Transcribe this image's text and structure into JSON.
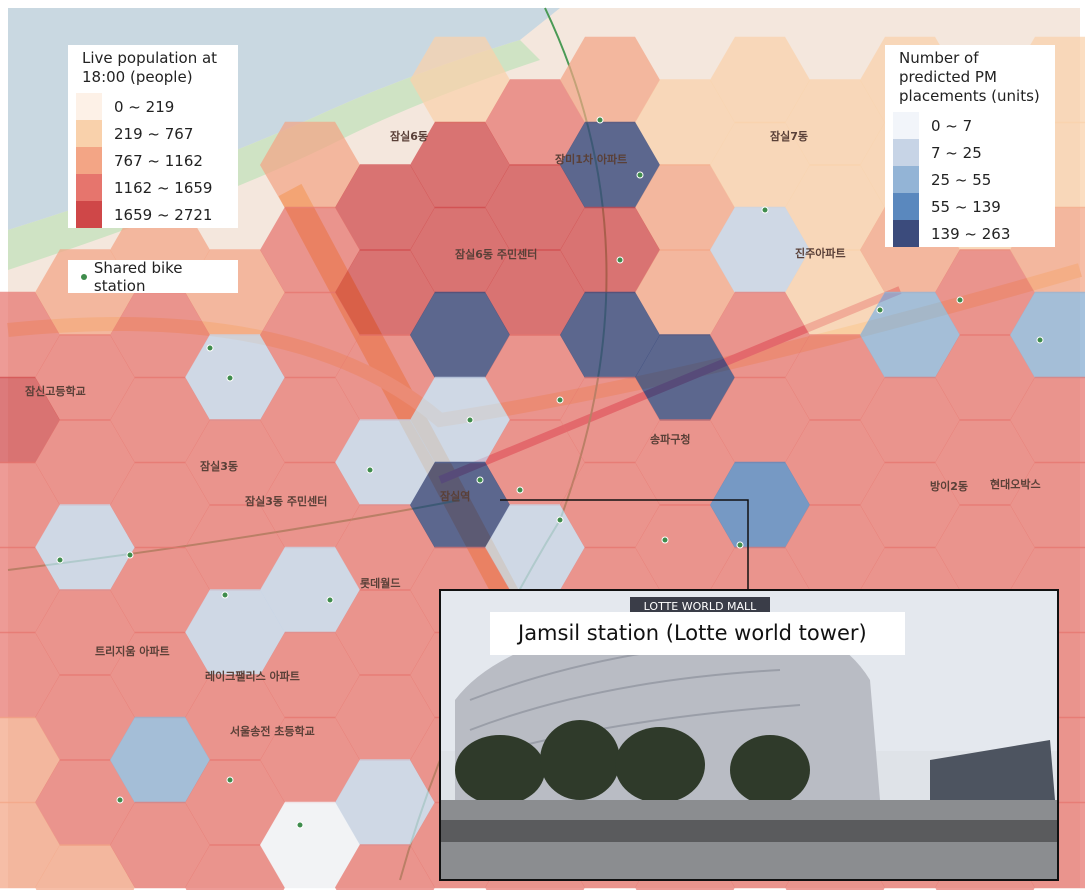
{
  "map": {
    "population_legend": {
      "title": "Live population at 18:00 (people)",
      "items": [
        {
          "label": "0 ~ 219",
          "color": "#fdf1e7"
        },
        {
          "label": "219 ~ 767",
          "color": "#f9d1ab"
        },
        {
          "label": "767 ~ 1162",
          "color": "#f3a585"
        },
        {
          "label": "1162 ~ 1659",
          "color": "#e6756d"
        },
        {
          "label": "1659 ~ 2721",
          "color": "#cf4748"
        }
      ]
    },
    "pm_legend": {
      "title": "Number of predicted PM placements (units)",
      "items": [
        {
          "label": "0 ~ 7",
          "color": "#f2f5fa"
        },
        {
          "label": "7 ~ 25",
          "color": "#c7d4e6"
        },
        {
          "label": "25 ~ 55",
          "color": "#93b4d6"
        },
        {
          "label": "55 ~ 139",
          "color": "#5a88be"
        },
        {
          "label": "139 ~ 263",
          "color": "#3b4b7c"
        }
      ]
    },
    "bike_legend": {
      "label": "Shared bike station",
      "color": "#3f8c4c"
    },
    "inset": {
      "title": "Jamsil station (Lotte world tower)",
      "sign": "LOTTE WORLD MALL"
    },
    "place_labels": [
      "잠실6동",
      "잠실7동",
      "잠실3동",
      "방이2동",
      "송파구청",
      "잠실역",
      "잠실3동 주민센터",
      "잠실6동 주민센터",
      "장미1차 아파트",
      "진주아파트",
      "트리지움 아파트",
      "레이크팰리스 아파트",
      "서울송전 초등학교",
      "롯데월드",
      "잠신고등학교",
      "현대오박스"
    ]
  }
}
